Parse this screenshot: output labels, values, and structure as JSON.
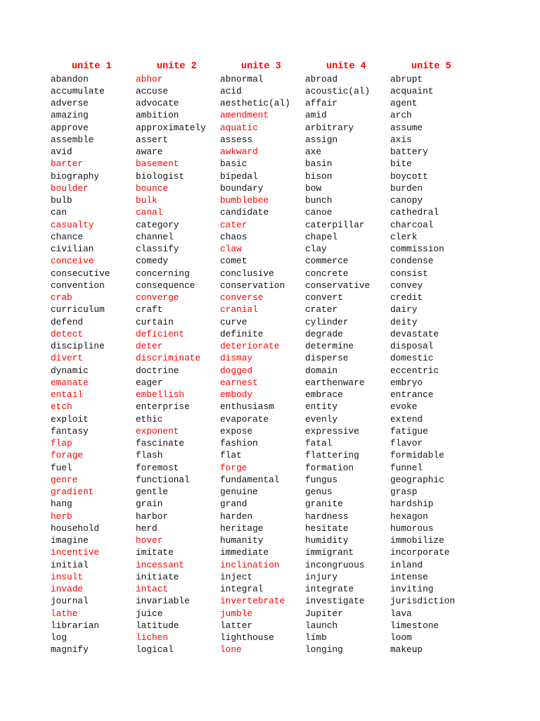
{
  "highlight_color": "#ff0000",
  "columns": [
    {
      "header": "unite 1",
      "words": [
        [
          "abandon",
          0
        ],
        [
          "accumulate",
          0
        ],
        [
          "adverse",
          0
        ],
        [
          "amazing",
          0
        ],
        [
          "approve",
          0
        ],
        [
          "assemble",
          0
        ],
        [
          "avid",
          0
        ],
        [
          "barter",
          1
        ],
        [
          "biography",
          0
        ],
        [
          "boulder",
          1
        ],
        [
          "bulb",
          0
        ],
        [
          "can",
          0
        ],
        [
          "casualty",
          1
        ],
        [
          "chance",
          0
        ],
        [
          "civilian",
          0
        ],
        [
          "conceive",
          1
        ],
        [
          "consecutive",
          0
        ],
        [
          "convention",
          0
        ],
        [
          "crab",
          1
        ],
        [
          "curriculum",
          0
        ],
        [
          "defend",
          0
        ],
        [
          "detect",
          1
        ],
        [
          "discipline",
          0
        ],
        [
          "divert",
          1
        ],
        [
          "dynamic",
          0
        ],
        [
          "emanate",
          1
        ],
        [
          "entail",
          1
        ],
        [
          "etch",
          1
        ],
        [
          "exploit",
          0
        ],
        [
          "fantasy",
          0
        ],
        [
          "flap",
          1
        ],
        [
          "forage",
          1
        ],
        [
          "fuel",
          0
        ],
        [
          "genre",
          1
        ],
        [
          "gradient",
          1
        ],
        [
          "hang",
          0
        ],
        [
          "herb",
          1
        ],
        [
          "household",
          0
        ],
        [
          "imagine",
          0
        ],
        [
          "incentive",
          1
        ],
        [
          "initial",
          0
        ],
        [
          "insult",
          1
        ],
        [
          "invade",
          1
        ],
        [
          "journal",
          0
        ],
        [
          "lathe",
          1
        ],
        [
          "librarian",
          0
        ],
        [
          "log",
          0
        ],
        [
          "magnify",
          0
        ]
      ]
    },
    {
      "header": "unite 2",
      "words": [
        [
          "abhor",
          1
        ],
        [
          "accuse",
          0
        ],
        [
          "advocate",
          0
        ],
        [
          "ambition",
          0
        ],
        [
          "approximately",
          0
        ],
        [
          "assert",
          0
        ],
        [
          "aware",
          0
        ],
        [
          "basement",
          1
        ],
        [
          "biologist",
          0
        ],
        [
          "bounce",
          1
        ],
        [
          "bulk",
          1
        ],
        [
          "canal",
          1
        ],
        [
          "category",
          0
        ],
        [
          "channel",
          0
        ],
        [
          "classify",
          0
        ],
        [
          "comedy",
          0
        ],
        [
          "concerning",
          0
        ],
        [
          "consequence",
          0
        ],
        [
          "converge",
          1
        ],
        [
          "craft",
          0
        ],
        [
          "curtain",
          0
        ],
        [
          "deficient",
          1
        ],
        [
          "deter",
          1
        ],
        [
          "discriminate",
          1
        ],
        [
          "doctrine",
          0
        ],
        [
          "eager",
          0
        ],
        [
          "embellish",
          1
        ],
        [
          "enterprise",
          0
        ],
        [
          "ethic",
          0
        ],
        [
          "exponent",
          1
        ],
        [
          "fascinate",
          0
        ],
        [
          "flash",
          0
        ],
        [
          "foremost",
          0
        ],
        [
          "functional",
          0
        ],
        [
          "gentle",
          0
        ],
        [
          "grain",
          0
        ],
        [
          "harbor",
          0
        ],
        [
          "herd",
          0
        ],
        [
          "hover",
          1
        ],
        [
          "imitate",
          0
        ],
        [
          "incessant",
          1
        ],
        [
          "initiate",
          0
        ],
        [
          "intact",
          1
        ],
        [
          "invariable",
          0
        ],
        [
          "juice",
          0
        ],
        [
          "latitude",
          0
        ],
        [
          "lichen",
          1
        ],
        [
          "logical",
          0
        ]
      ]
    },
    {
      "header": "unite 3",
      "words": [
        [
          "abnormal",
          0
        ],
        [
          "acid",
          0
        ],
        [
          "aesthetic(al)",
          0
        ],
        [
          "amendment",
          1
        ],
        [
          "aquatic",
          1
        ],
        [
          "assess",
          0
        ],
        [
          "awkward",
          1
        ],
        [
          "basic",
          0
        ],
        [
          "bipedal",
          0
        ],
        [
          "boundary",
          0
        ],
        [
          "bumblebee",
          1
        ],
        [
          "candidate",
          0
        ],
        [
          "cater",
          1
        ],
        [
          "chaos",
          0
        ],
        [
          "claw",
          1
        ],
        [
          "comet",
          0
        ],
        [
          "conclusive",
          0
        ],
        [
          "conservation",
          0
        ],
        [
          "converse",
          1
        ],
        [
          "cranial",
          1
        ],
        [
          "curve",
          0
        ],
        [
          "definite",
          0
        ],
        [
          "deteriorate",
          1
        ],
        [
          "dismay",
          1
        ],
        [
          "dogged",
          1
        ],
        [
          "earnest",
          1
        ],
        [
          "embody",
          1
        ],
        [
          "enthusiasm",
          0
        ],
        [
          "evaporate",
          0
        ],
        [
          "expose",
          0
        ],
        [
          "fashion",
          0
        ],
        [
          "flat",
          0
        ],
        [
          "forge",
          1
        ],
        [
          "fundamental",
          0
        ],
        [
          "genuine",
          0
        ],
        [
          "grand",
          0
        ],
        [
          "harden",
          0
        ],
        [
          "heritage",
          0
        ],
        [
          "humanity",
          0
        ],
        [
          "immediate",
          0
        ],
        [
          "inclination",
          1
        ],
        [
          "inject",
          0
        ],
        [
          "integral",
          0
        ],
        [
          "invertebrate",
          1
        ],
        [
          "jumble",
          1
        ],
        [
          "latter",
          0
        ],
        [
          "lighthouse",
          0
        ],
        [
          "lone",
          1
        ]
      ]
    },
    {
      "header": "unite 4",
      "words": [
        [
          "abroad",
          0
        ],
        [
          "acoustic(al)",
          0
        ],
        [
          "affair",
          0
        ],
        [
          "amid",
          0
        ],
        [
          "arbitrary",
          0
        ],
        [
          "assign",
          0
        ],
        [
          "axe",
          0
        ],
        [
          "basin",
          0
        ],
        [
          "bison",
          0
        ],
        [
          "bow",
          0
        ],
        [
          "bunch",
          0
        ],
        [
          "canoe",
          0
        ],
        [
          "caterpillar",
          0
        ],
        [
          "chapel",
          0
        ],
        [
          "clay",
          0
        ],
        [
          "commerce",
          0
        ],
        [
          "concrete",
          0
        ],
        [
          "conservative",
          0
        ],
        [
          "convert",
          0
        ],
        [
          "crater",
          0
        ],
        [
          "cylinder",
          0
        ],
        [
          "degrade",
          0
        ],
        [
          "determine",
          0
        ],
        [
          "disperse",
          0
        ],
        [
          "domain",
          0
        ],
        [
          "earthenware",
          0
        ],
        [
          "embrace",
          0
        ],
        [
          "entity",
          0
        ],
        [
          "evenly",
          0
        ],
        [
          "expressive",
          0
        ],
        [
          "fatal",
          0
        ],
        [
          "flattering",
          0
        ],
        [
          "formation",
          0
        ],
        [
          "fungus",
          0
        ],
        [
          "genus",
          0
        ],
        [
          "granite",
          0
        ],
        [
          "hardness",
          0
        ],
        [
          "hesitate",
          0
        ],
        [
          "humidity",
          0
        ],
        [
          "immigrant",
          0
        ],
        [
          "incongruous",
          0
        ],
        [
          "injury",
          0
        ],
        [
          "integrate",
          0
        ],
        [
          "investigate",
          0
        ],
        [
          "Jupiter",
          0
        ],
        [
          "launch",
          0
        ],
        [
          "limb",
          0
        ],
        [
          "longing",
          0
        ]
      ]
    },
    {
      "header": "unite 5",
      "words": [
        [
          "abrupt",
          0
        ],
        [
          "acquaint",
          0
        ],
        [
          "agent",
          0
        ],
        [
          "arch",
          0
        ],
        [
          "assume",
          0
        ],
        [
          "axis",
          0
        ],
        [
          "battery",
          0
        ],
        [
          "bite",
          0
        ],
        [
          "boycott",
          0
        ],
        [
          "burden",
          0
        ],
        [
          "canopy",
          0
        ],
        [
          "cathedral",
          0
        ],
        [
          "charcoal",
          0
        ],
        [
          "clerk",
          0
        ],
        [
          "commission",
          0
        ],
        [
          "condense",
          0
        ],
        [
          "consist",
          0
        ],
        [
          "convey",
          0
        ],
        [
          "credit",
          0
        ],
        [
          "dairy",
          0
        ],
        [
          "deity",
          0
        ],
        [
          "devastate",
          0
        ],
        [
          "disposal",
          0
        ],
        [
          "domestic",
          0
        ],
        [
          "eccentric",
          0
        ],
        [
          "embryo",
          0
        ],
        [
          "entrance",
          0
        ],
        [
          "evoke",
          0
        ],
        [
          "extend",
          0
        ],
        [
          "fatigue",
          0
        ],
        [
          "flavor",
          0
        ],
        [
          "formidable",
          0
        ],
        [
          "funnel",
          0
        ],
        [
          "geographic",
          0
        ],
        [
          "grasp",
          0
        ],
        [
          "hardship",
          0
        ],
        [
          "hexagon",
          0
        ],
        [
          "humorous",
          0
        ],
        [
          "immobilize",
          0
        ],
        [
          "incorporate",
          0
        ],
        [
          "inland",
          0
        ],
        [
          "intense",
          0
        ],
        [
          "inviting",
          0
        ],
        [
          "jurisdiction",
          0
        ],
        [
          "lava",
          0
        ],
        [
          "limestone",
          0
        ],
        [
          "loom",
          0
        ],
        [
          "makeup",
          0
        ]
      ]
    }
  ]
}
